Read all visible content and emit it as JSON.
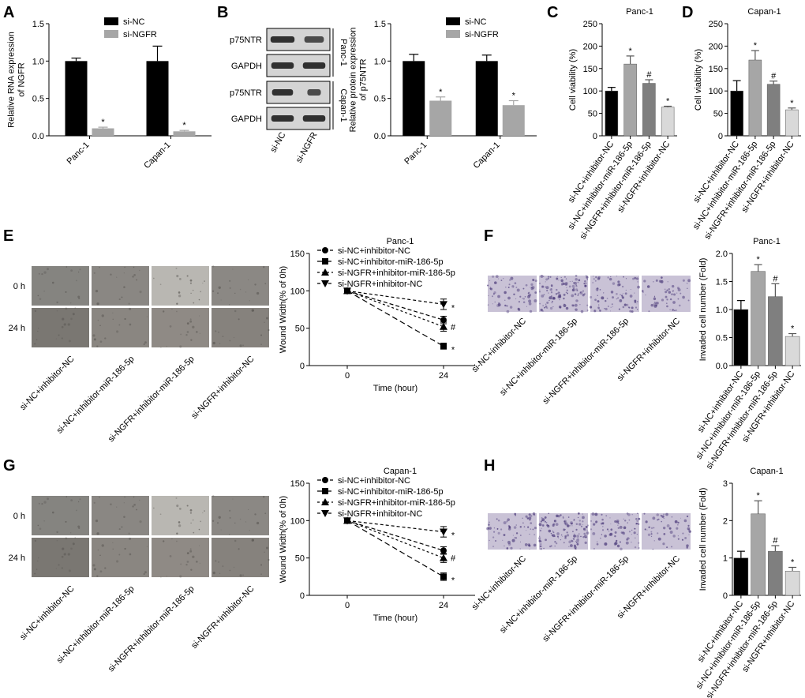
{
  "colors": {
    "black": "#000000",
    "gray": "#a6a6a6",
    "darkgray": "#7f7f7f",
    "lightgray": "#d9d9d9",
    "blot_bg": "#d4d4d4",
    "band": "#1e1e1e",
    "micro_bg": "#8f8c88",
    "transwell_bg": "#c9c2d6",
    "transwell_cells": "#4b3a7a"
  },
  "chart_data": [
    {
      "id": "A",
      "panel_label": "A",
      "type": "bar",
      "categories": [
        "Panc-1",
        "Capan-1"
      ],
      "series": [
        {
          "name": "si-NC",
          "values": [
            1.0,
            1.0
          ],
          "errors": [
            0.04,
            0.2
          ],
          "stars": [
            "",
            ""
          ]
        },
        {
          "name": "si-NGFR",
          "values": [
            0.1,
            0.06
          ],
          "errors": [
            0.015,
            0.012
          ],
          "stars": [
            "*",
            "*"
          ]
        }
      ],
      "ylabel": "Relative RNA expression\nof NGFR",
      "ylim": [
        0,
        1.5
      ],
      "yticks": [
        "0.0",
        "0.5",
        "1.0",
        "1.5"
      ],
      "legend": "top"
    },
    {
      "id": "B",
      "panel_label": "B",
      "type": "bar",
      "categories": [
        "Panc-1",
        "Capan-1"
      ],
      "series": [
        {
          "name": "si-NC",
          "values": [
            1.0,
            1.0
          ],
          "errors": [
            0.09,
            0.08
          ],
          "stars": [
            "",
            ""
          ]
        },
        {
          "name": "si-NGFR",
          "values": [
            0.47,
            0.41
          ],
          "errors": [
            0.05,
            0.06
          ],
          "stars": [
            "*",
            "*"
          ]
        }
      ],
      "ylabel": "Relative protein expression\nof p75NTR",
      "ylim": [
        0,
        1.5
      ],
      "yticks": [
        "0.0",
        "0.5",
        "1.0",
        "1.5"
      ],
      "legend": "top"
    },
    {
      "id": "C",
      "panel_label": "C",
      "type": "bar",
      "title": "Panc-1",
      "categories": [
        "si-NC+inhibitor-NC",
        "si-NC+inhibitor-miR-186-5p",
        "si-NGFR+inhibitor-miR-186-5p",
        "si-NGFR+inhibitor-NC"
      ],
      "values": [
        100,
        160,
        117,
        64
      ],
      "errors": [
        8,
        18,
        8,
        2
      ],
      "stars": [
        "",
        "*",
        "#",
        "*"
      ],
      "ylabel": "Cell viability (%)",
      "ylim": [
        0,
        250
      ],
      "yticks": [
        "0",
        "50",
        "100",
        "150",
        "200",
        "250"
      ]
    },
    {
      "id": "D",
      "panel_label": "D",
      "type": "bar",
      "title": "Capan-1",
      "categories": [
        "si-NC+inhibitor-NC",
        "si-NC+inhibitor-miR-186-5p",
        "si-NGFR+inhibitor-miR-186-5p",
        "si-NGFR+inhibitor-NC"
      ],
      "values": [
        100,
        169,
        115,
        58
      ],
      "errors": [
        23,
        21,
        7,
        4
      ],
      "stars": [
        "",
        "*",
        "#",
        "*"
      ],
      "ylabel": "Cell viability (%)",
      "ylim": [
        0,
        250
      ],
      "yticks": [
        "0",
        "50",
        "100",
        "150",
        "200",
        "250"
      ]
    },
    {
      "id": "E",
      "panel_label": "E",
      "type": "line",
      "title": "Panc-1",
      "x": [
        0,
        24
      ],
      "xticks": [
        "0",
        "24"
      ],
      "series": [
        {
          "name": "si-NC+inhibitor-NC",
          "values": [
            100,
            61
          ],
          "errors": [
            0,
            5
          ],
          "marker": "circle",
          "star": ""
        },
        {
          "name": "si-NC+inhibitor-miR-186-5p",
          "values": [
            100,
            26
          ],
          "errors": [
            0,
            4
          ],
          "marker": "square",
          "star": "*"
        },
        {
          "name": "si-NGFR+inhibitor-miR-186-5p",
          "values": [
            100,
            52
          ],
          "errors": [
            0,
            6
          ],
          "marker": "triangle-up",
          "star": "#"
        },
        {
          "name": "si-NGFR+inhibitor-NC",
          "values": [
            100,
            82
          ],
          "errors": [
            0,
            7
          ],
          "marker": "triangle-down",
          "star": "*"
        }
      ],
      "xlabel": "Time (hour)",
      "ylabel": "Wound Width(% of 0h)",
      "ylim": [
        0,
        150
      ],
      "yticks": [
        "0",
        "50",
        "100",
        "150"
      ],
      "legend": "top-left"
    },
    {
      "id": "F",
      "panel_label": "F",
      "type": "bar",
      "title": "Panc-1",
      "categories": [
        "si-NC+inhibitor-NC",
        "si-NC+inhibitor-miR-186-5p",
        "si-NGFR+inhibitor-miR-186-5p",
        "si-NGFR+inhibitor-NC"
      ],
      "values": [
        1.0,
        1.68,
        1.23,
        0.52
      ],
      "errors": [
        0.16,
        0.12,
        0.23,
        0.05
      ],
      "stars": [
        "",
        "*",
        "#",
        "*"
      ],
      "ylabel": "Invaded cell number (Fold)",
      "ylim": [
        0,
        2.0
      ],
      "yticks": [
        "0.0",
        "0.5",
        "1.0",
        "1.5",
        "2.0"
      ]
    },
    {
      "id": "G",
      "panel_label": "G",
      "type": "line",
      "title": "Capan-1",
      "x": [
        0,
        24
      ],
      "xticks": [
        "0",
        "24"
      ],
      "series": [
        {
          "name": "si-NC+inhibitor-NC",
          "values": [
            100,
            60
          ],
          "errors": [
            0,
            5
          ],
          "marker": "circle",
          "star": ""
        },
        {
          "name": "si-NC+inhibitor-miR-186-5p",
          "values": [
            100,
            25
          ],
          "errors": [
            0,
            5
          ],
          "marker": "square",
          "star": "*"
        },
        {
          "name": "si-NGFR+inhibitor-miR-186-5p",
          "values": [
            100,
            50
          ],
          "errors": [
            0,
            6
          ],
          "marker": "triangle-up",
          "star": "#"
        },
        {
          "name": "si-NGFR+inhibitor-NC",
          "values": [
            100,
            85
          ],
          "errors": [
            0,
            7
          ],
          "marker": "triangle-down",
          "star": "*"
        }
      ],
      "xlabel": "Time (hour)",
      "ylabel": "Wound Width(% of 0h)",
      "ylim": [
        0,
        150
      ],
      "yticks": [
        "0",
        "50",
        "100",
        "150"
      ],
      "legend": "top-left"
    },
    {
      "id": "H",
      "panel_label": "H",
      "type": "bar",
      "title": "Capan-1",
      "categories": [
        "si-NC+inhibitor-NC",
        "si-NC+inhibitor-miR-186-5p",
        "si-NGFR+inhibitor-miR-186-5p",
        "si-NGFR+inhibitor-NC"
      ],
      "values": [
        1.0,
        2.18,
        1.18,
        0.65
      ],
      "errors": [
        0.18,
        0.35,
        0.15,
        0.1
      ],
      "stars": [
        "",
        "*",
        "#",
        "*"
      ],
      "ylabel": "Invaded cell number (Fold)",
      "ylim": [
        0,
        3
      ],
      "yticks": [
        "0",
        "1",
        "2",
        "3"
      ]
    }
  ],
  "blot": {
    "rows": [
      "p75NTR",
      "GAPDH",
      "p75NTR",
      "GAPDH"
    ],
    "groups": [
      "Panc-1",
      "Capan-1"
    ],
    "lanes": [
      "si-NC",
      "si-NGFR"
    ]
  },
  "scratch": {
    "timepoints": [
      "0 h",
      "24 h"
    ],
    "lanes": [
      "si-NC+inhibitor-NC",
      "si-NC+inhibitor-miR-186-5p",
      "si-NGFR+inhibitor-miR-186-5p",
      "si-NGFR+inhibitor-NC"
    ]
  },
  "transwell": {
    "lanes": [
      "si-NC+inhibitor-NC",
      "si-NC+inhibitor-miR-186-5p",
      "si-NGFR+inhibitor-miR-186-5p",
      "si-NGFR+inhibitor-NC"
    ]
  }
}
